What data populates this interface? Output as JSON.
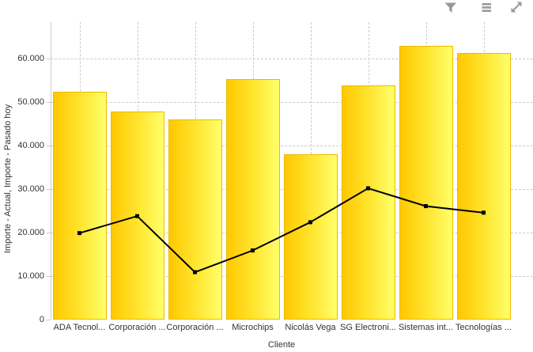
{
  "toolbar": {
    "filter_icon": "filter",
    "menu_icon": "menu",
    "expand_icon": "expand",
    "icon_color": "#999999"
  },
  "chart_data": {
    "type": "bar",
    "subtype": "bar-and-line-combo",
    "title": "",
    "xlabel": "Cliente",
    "ylabel": "Importe - Actual, Importe - Pasado hoy",
    "categories": [
      "ADA Tecnol...",
      "Corporación ...",
      "Corporación ...",
      "Microchips",
      "Nicolás Vega",
      "SG Electroni...",
      "Sistemas int...",
      "Tecnologías ..."
    ],
    "series": [
      {
        "name": "Importe - Actual",
        "type": "bar",
        "values": [
          52500,
          47800,
          46000,
          55400,
          38000,
          53900,
          63000,
          61400
        ],
        "fill_gradient": [
          "#FFC800",
          "#FFFF6B"
        ],
        "border_color": "#EEB900"
      },
      {
        "name": "Importe - Pasado hoy",
        "type": "line",
        "values": [
          19900,
          23800,
          10900,
          15900,
          22400,
          30200,
          26100,
          24600
        ],
        "color": "#000000",
        "marker": "square"
      }
    ],
    "y_axis": {
      "min": 0,
      "max": 60000,
      "tick_step": 10000,
      "tick_labels": [
        "0",
        "10.000",
        "20.000",
        "30.000",
        "40.000",
        "50.000",
        "60.000"
      ]
    },
    "grid": {
      "style": "dashed",
      "color": "#CCCCCC",
      "vertical": true,
      "horizontal": true
    }
  }
}
